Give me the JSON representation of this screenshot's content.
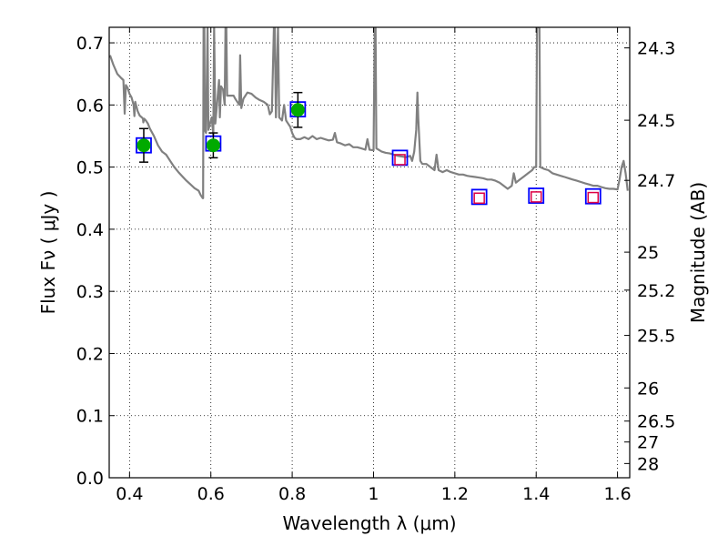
{
  "chart_data": {
    "type": "scatter",
    "xlabel": "Wavelength  λ (μm)",
    "ylabel_left": "Flux  Fν  ( μJy )",
    "ylabel_right": "Magnitude (AB)",
    "xlim": [
      0.35,
      1.63
    ],
    "ylim": [
      0.0,
      0.725
    ],
    "grid": true,
    "x_ticks": [
      0.4,
      0.6,
      0.8,
      1.0,
      1.2,
      1.4,
      1.6
    ],
    "x_tick_labels": [
      "0.4",
      "0.6",
      "0.8",
      "1",
      "1.2",
      "1.4",
      "1.6"
    ],
    "y_ticks": [
      0.0,
      0.1,
      0.2,
      0.3,
      0.4,
      0.5,
      0.6,
      0.7
    ],
    "y_tick_labels": [
      "0.0",
      "0.1",
      "0.2",
      "0.3",
      "0.4",
      "0.5",
      "0.6",
      "0.7"
    ],
    "right_ticks": [
      "24.3",
      "24.5",
      "24.7",
      "25",
      "25.2",
      "25.5",
      "26",
      "26.5",
      "27",
      "28"
    ],
    "colors": {
      "model": "#808080",
      "detection_fill": "#00aa00",
      "box_edge": "#0000ff",
      "upper_limit_edge": "#dd0044",
      "errorbar": "#000000"
    },
    "detections": [
      {
        "x": 0.435,
        "y": 0.535,
        "err": 0.027
      },
      {
        "x": 0.606,
        "y": 0.535,
        "err": 0.02
      },
      {
        "x": 0.814,
        "y": 0.592,
        "err": 0.028
      }
    ],
    "model_boxes": [
      {
        "x": 0.435,
        "y": 0.535
      },
      {
        "x": 0.606,
        "y": 0.538
      },
      {
        "x": 0.814,
        "y": 0.593
      },
      {
        "x": 1.065,
        "y": 0.515
      },
      {
        "x": 1.26,
        "y": 0.452
      },
      {
        "x": 1.4,
        "y": 0.454
      },
      {
        "x": 1.54,
        "y": 0.453
      }
    ],
    "upper_limits": [
      {
        "x": 1.065,
        "y": 0.512
      },
      {
        "x": 1.26,
        "y": 0.45
      },
      {
        "x": 1.4,
        "y": 0.452
      },
      {
        "x": 1.54,
        "y": 0.451
      }
    ],
    "model_spectrum": [
      [
        0.352,
        0.68
      ],
      [
        0.36,
        0.665
      ],
      [
        0.37,
        0.65
      ],
      [
        0.38,
        0.643
      ],
      [
        0.385,
        0.64
      ],
      [
        0.388,
        0.586
      ],
      [
        0.391,
        0.632
      ],
      [
        0.395,
        0.628
      ],
      [
        0.4,
        0.618
      ],
      [
        0.405,
        0.612
      ],
      [
        0.41,
        0.6
      ],
      [
        0.412,
        0.582
      ],
      [
        0.414,
        0.605
      ],
      [
        0.42,
        0.59
      ],
      [
        0.425,
        0.583
      ],
      [
        0.43,
        0.58
      ],
      [
        0.433,
        0.578
      ],
      [
        0.434,
        0.572
      ],
      [
        0.436,
        0.578
      ],
      [
        0.44,
        0.575
      ],
      [
        0.445,
        0.57
      ],
      [
        0.45,
        0.562
      ],
      [
        0.46,
        0.55
      ],
      [
        0.47,
        0.535
      ],
      [
        0.48,
        0.525
      ],
      [
        0.486,
        0.522
      ],
      [
        0.49,
        0.52
      ],
      [
        0.5,
        0.51
      ],
      [
        0.51,
        0.5
      ],
      [
        0.52,
        0.492
      ],
      [
        0.53,
        0.485
      ],
      [
        0.54,
        0.478
      ],
      [
        0.55,
        0.472
      ],
      [
        0.56,
        0.466
      ],
      [
        0.57,
        0.462
      ],
      [
        0.575,
        0.455
      ],
      [
        0.58,
        0.45
      ],
      [
        0.581,
        0.45
      ],
      [
        0.582,
        0.725
      ],
      [
        0.584,
        0.725
      ],
      [
        0.585,
        0.56
      ],
      [
        0.588,
        0.555
      ],
      [
        0.592,
        0.725
      ],
      [
        0.594,
        0.56
      ],
      [
        0.598,
        0.57
      ],
      [
        0.602,
        0.58
      ],
      [
        0.606,
        0.552
      ],
      [
        0.608,
        0.725
      ],
      [
        0.611,
        0.57
      ],
      [
        0.615,
        0.6
      ],
      [
        0.62,
        0.64
      ],
      [
        0.622,
        0.58
      ],
      [
        0.625,
        0.63
      ],
      [
        0.63,
        0.625
      ],
      [
        0.634,
        0.6
      ],
      [
        0.636,
        0.725
      ],
      [
        0.638,
        0.725
      ],
      [
        0.64,
        0.615
      ],
      [
        0.65,
        0.615
      ],
      [
        0.656,
        0.615
      ],
      [
        0.66,
        0.61
      ],
      [
        0.67,
        0.6
      ],
      [
        0.672,
        0.68
      ],
      [
        0.675,
        0.595
      ],
      [
        0.68,
        0.61
      ],
      [
        0.69,
        0.62
      ],
      [
        0.7,
        0.618
      ],
      [
        0.71,
        0.612
      ],
      [
        0.72,
        0.608
      ],
      [
        0.73,
        0.605
      ],
      [
        0.74,
        0.6
      ],
      [
        0.745,
        0.585
      ],
      [
        0.75,
        0.59
      ],
      [
        0.755,
        0.725
      ],
      [
        0.757,
        0.725
      ],
      [
        0.76,
        0.58
      ],
      [
        0.765,
        0.725
      ],
      [
        0.768,
        0.58
      ],
      [
        0.775,
        0.575
      ],
      [
        0.78,
        0.6
      ],
      [
        0.785,
        0.575
      ],
      [
        0.79,
        0.57
      ],
      [
        0.795,
        0.565
      ],
      [
        0.8,
        0.555
      ],
      [
        0.805,
        0.548
      ],
      [
        0.81,
        0.545
      ],
      [
        0.82,
        0.545
      ],
      [
        0.83,
        0.548
      ],
      [
        0.84,
        0.545
      ],
      [
        0.85,
        0.55
      ],
      [
        0.86,
        0.545
      ],
      [
        0.87,
        0.547
      ],
      [
        0.88,
        0.545
      ],
      [
        0.89,
        0.543
      ],
      [
        0.9,
        0.544
      ],
      [
        0.905,
        0.555
      ],
      [
        0.91,
        0.54
      ],
      [
        0.92,
        0.538
      ],
      [
        0.93,
        0.535
      ],
      [
        0.94,
        0.537
      ],
      [
        0.95,
        0.532
      ],
      [
        0.96,
        0.532
      ],
      [
        0.97,
        0.53
      ],
      [
        0.98,
        0.528
      ],
      [
        0.985,
        0.545
      ],
      [
        0.99,
        0.528
      ],
      [
        1.0,
        0.527
      ],
      [
        1.003,
        0.725
      ],
      [
        1.005,
        0.725
      ],
      [
        1.007,
        0.53
      ],
      [
        1.02,
        0.525
      ],
      [
        1.03,
        0.523
      ],
      [
        1.04,
        0.522
      ],
      [
        1.05,
        0.52
      ],
      [
        1.06,
        0.518
      ],
      [
        1.07,
        0.517
      ],
      [
        1.08,
        0.516
      ],
      [
        1.09,
        0.518
      ],
      [
        1.095,
        0.51
      ],
      [
        1.1,
        0.525
      ],
      [
        1.105,
        0.56
      ],
      [
        1.108,
        0.62
      ],
      [
        1.11,
        0.58
      ],
      [
        1.115,
        0.51
      ],
      [
        1.12,
        0.505
      ],
      [
        1.13,
        0.505
      ],
      [
        1.14,
        0.5
      ],
      [
        1.15,
        0.495
      ],
      [
        1.155,
        0.52
      ],
      [
        1.16,
        0.495
      ],
      [
        1.17,
        0.492
      ],
      [
        1.18,
        0.495
      ],
      [
        1.19,
        0.492
      ],
      [
        1.2,
        0.49
      ],
      [
        1.21,
        0.488
      ],
      [
        1.22,
        0.488
      ],
      [
        1.23,
        0.486
      ],
      [
        1.24,
        0.485
      ],
      [
        1.25,
        0.484
      ],
      [
        1.26,
        0.483
      ],
      [
        1.27,
        0.482
      ],
      [
        1.28,
        0.48
      ],
      [
        1.29,
        0.48
      ],
      [
        1.3,
        0.478
      ],
      [
        1.31,
        0.475
      ],
      [
        1.32,
        0.47
      ],
      [
        1.33,
        0.465
      ],
      [
        1.34,
        0.47
      ],
      [
        1.345,
        0.49
      ],
      [
        1.35,
        0.475
      ],
      [
        1.36,
        0.48
      ],
      [
        1.37,
        0.485
      ],
      [
        1.38,
        0.49
      ],
      [
        1.39,
        0.495
      ],
      [
        1.395,
        0.5
      ],
      [
        1.4,
        0.5
      ],
      [
        1.402,
        0.725
      ],
      [
        1.408,
        0.725
      ],
      [
        1.41,
        0.5
      ],
      [
        1.42,
        0.497
      ],
      [
        1.43,
        0.495
      ],
      [
        1.44,
        0.49
      ],
      [
        1.45,
        0.488
      ],
      [
        1.46,
        0.486
      ],
      [
        1.47,
        0.484
      ],
      [
        1.48,
        0.482
      ],
      [
        1.49,
        0.48
      ],
      [
        1.5,
        0.478
      ],
      [
        1.51,
        0.476
      ],
      [
        1.52,
        0.474
      ],
      [
        1.53,
        0.472
      ],
      [
        1.54,
        0.47
      ],
      [
        1.55,
        0.47
      ],
      [
        1.56,
        0.468
      ],
      [
        1.57,
        0.466
      ],
      [
        1.58,
        0.465
      ],
      [
        1.59,
        0.465
      ],
      [
        1.6,
        0.464
      ],
      [
        1.605,
        0.48
      ],
      [
        1.61,
        0.5
      ],
      [
        1.615,
        0.51
      ],
      [
        1.62,
        0.49
      ],
      [
        1.625,
        0.462
      ]
    ]
  }
}
